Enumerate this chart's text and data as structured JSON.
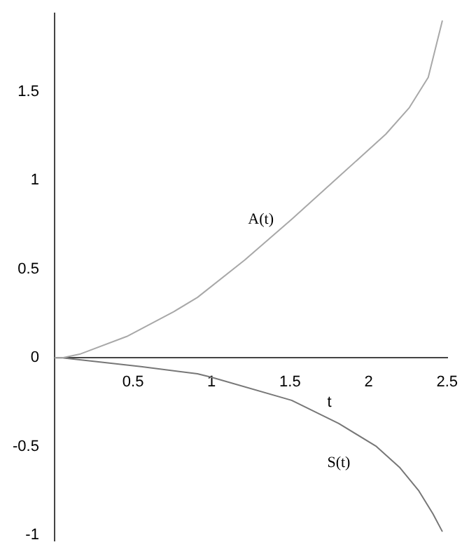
{
  "chart_data": {
    "type": "line",
    "xlabel": "t",
    "x": [
      0,
      0.05,
      0.16,
      0.46,
      0.76,
      0.91,
      1.21,
      1.51,
      1.81,
      2.11,
      2.26,
      2.38,
      2.47
    ],
    "series": [
      {
        "name": "A(t)",
        "color": "#a8a8a8",
        "values": [
          0,
          0,
          0.02,
          0.12,
          0.26,
          0.34,
          0.55,
          0.78,
          1.02,
          1.26,
          1.41,
          1.58,
          1.9
        ]
      },
      {
        "name": "S(t)",
        "color": "#777777",
        "x": [
          0,
          0.05,
          0.55,
          0.91,
          1.0,
          1.51,
          1.81,
          2.05,
          2.2,
          2.32,
          2.41,
          2.47
        ],
        "values": [
          0,
          0,
          -0.05,
          -0.09,
          -0.11,
          -0.24,
          -0.37,
          -0.5,
          -0.62,
          -0.75,
          -0.88,
          -0.98
        ]
      }
    ],
    "xlim": [
      0,
      2.5
    ],
    "ylim": [
      -1.03,
      1.94
    ],
    "xticks": [
      0.5,
      1,
      1.5,
      2,
      2.5
    ],
    "yticks": [
      -1,
      -0.5,
      0,
      0.5,
      1,
      1.5
    ],
    "grid": false,
    "legend": false,
    "marker": "none",
    "line_style": "solid"
  }
}
